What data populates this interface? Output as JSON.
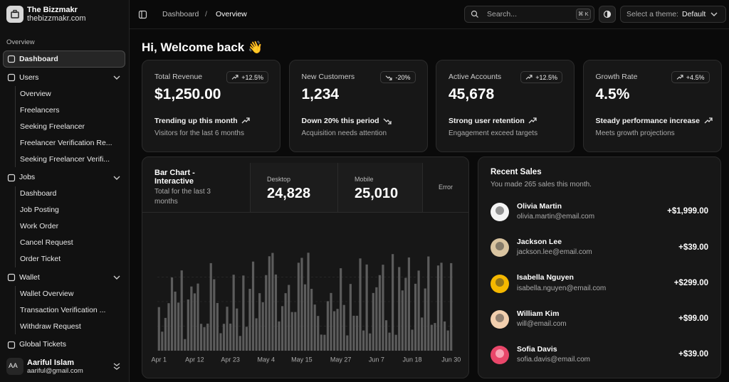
{
  "sidebar": {
    "brand": {
      "name": "The Bizzmakr",
      "domain": "thebizzmakr.com"
    },
    "section_label": "Overview",
    "nav": [
      {
        "label": "Dashboard",
        "children": []
      },
      {
        "label": "Users",
        "children": [
          "Overview",
          "Freelancers",
          "Seeking Freelancer",
          "Freelancer Verification Re...",
          "Seeking Freelancer Verifi..."
        ]
      },
      {
        "label": "Jobs",
        "children": [
          "Dashboard",
          "Job Posting",
          "Work Order",
          "Cancel Request",
          "Order Ticket"
        ]
      },
      {
        "label": "Wallet",
        "children": [
          "Wallet Overview",
          "Transaction Verification ...",
          "Withdraw Request"
        ]
      },
      {
        "label": "Global Tickets",
        "children": []
      }
    ],
    "user": {
      "initials": "AA",
      "name": "Aariful Islam",
      "email": "aariful@gmail.com"
    }
  },
  "header": {
    "breadcrumb": [
      "Dashboard",
      "Overview"
    ],
    "breadcrumb_separator": "/",
    "search": {
      "placeholder": "Search...",
      "shortcut": "⌘ K"
    },
    "theme": {
      "label": "Select a theme:",
      "value": "Default"
    }
  },
  "greeting": "Hi, Welcome back 👋",
  "cards": [
    {
      "title": "Total Revenue",
      "value": "$1,250.00",
      "badge": "+12.5%",
      "trend": "Trending up this month",
      "note": "Visitors for the last 6 months"
    },
    {
      "title": "New Customers",
      "value": "1,234",
      "badge": "-20%",
      "trend": "Down 20% this period",
      "note": "Acquisition needs attention"
    },
    {
      "title": "Active Accounts",
      "value": "45,678",
      "badge": "+12.5%",
      "trend": "Strong user retention",
      "note": "Engagement exceed targets"
    },
    {
      "title": "Growth Rate",
      "value": "4.5%",
      "badge": "+4.5%",
      "trend": "Steady performance increase",
      "note": "Meets growth projections"
    }
  ],
  "chart_tabs": [
    {
      "label": "Desktop",
      "value": "24,828"
    },
    {
      "label": "Mobile",
      "value": "25,010"
    },
    {
      "label": "Error"
    }
  ],
  "chart_data": {
    "type": "bar",
    "title": "Bar Chart - Interactive",
    "subtitle": "Total for the last 3 months",
    "color": "#5c5c5c",
    "ylim": [
      0,
      500
    ],
    "categories": [
      "Apr 1",
      null,
      null,
      null,
      null,
      null,
      null,
      null,
      null,
      null,
      null,
      "Apr 12",
      null,
      null,
      null,
      null,
      null,
      null,
      null,
      null,
      null,
      null,
      "Apr 23",
      null,
      null,
      null,
      null,
      null,
      null,
      null,
      null,
      null,
      null,
      "May 4",
      null,
      null,
      null,
      null,
      null,
      null,
      null,
      null,
      null,
      null,
      "May 15",
      null,
      null,
      null,
      null,
      null,
      null,
      null,
      null,
      null,
      null,
      null,
      "May 27",
      null,
      null,
      null,
      null,
      null,
      null,
      null,
      null,
      null,
      null,
      "Jun 7",
      null,
      null,
      null,
      null,
      null,
      null,
      null,
      null,
      null,
      null,
      "Jun 18",
      null,
      null,
      null,
      null,
      null,
      null,
      null,
      null,
      null,
      null,
      null,
      "Jun 30"
    ],
    "values": [
      222,
      97,
      167,
      242,
      373,
      301,
      245,
      409,
      59,
      261,
      327,
      292,
      342,
      137,
      120,
      138,
      446,
      364,
      243,
      89,
      137,
      224,
      138,
      387,
      215,
      75,
      383,
      122,
      315,
      454,
      165,
      293,
      247,
      385,
      481,
      498,
      388,
      149,
      227,
      293,
      335,
      197,
      197,
      448,
      473,
      338,
      499,
      315,
      235,
      177,
      82,
      81,
      252,
      294,
      201,
      213,
      420,
      233,
      78,
      340,
      178,
      178,
      470,
      103,
      439,
      88,
      294,
      323,
      385,
      438,
      155,
      92,
      492,
      81,
      426,
      307,
      371,
      475,
      107,
      341,
      408,
      169,
      317,
      480,
      132,
      141,
      434,
      448,
      149,
      103,
      446
    ]
  },
  "recent_sales": {
    "title": "Recent Sales",
    "subtitle": "You made 265 sales this month.",
    "items": [
      {
        "name": "Olivia Martin",
        "email": "olivia.martin@email.com",
        "amount": "+$1,999.00"
      },
      {
        "name": "Jackson Lee",
        "email": "jackson.lee@email.com",
        "amount": "+$39.00"
      },
      {
        "name": "Isabella Nguyen",
        "email": "isabella.nguyen@email.com",
        "amount": "+$299.00"
      },
      {
        "name": "William Kim",
        "email": "will@email.com",
        "amount": "+$99.00"
      },
      {
        "name": "Sofia Davis",
        "email": "sofia.davis@email.com",
        "amount": "+$39.00"
      }
    ]
  }
}
